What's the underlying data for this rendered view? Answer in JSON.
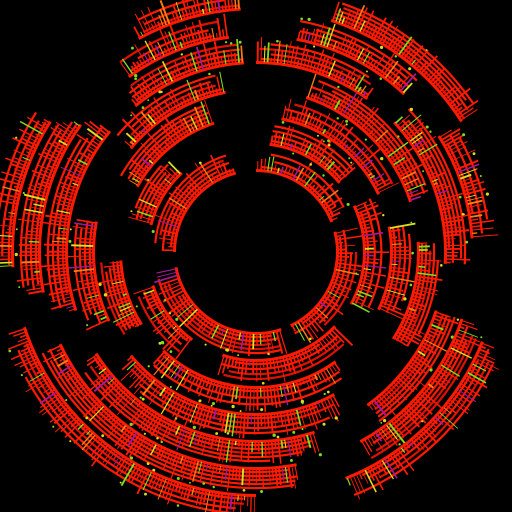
{
  "visual": {
    "type": "radial-segmented-ring-diagram",
    "background": "#000000",
    "palette": {
      "primary": "#ff1a00",
      "primary_dark": "#e01000",
      "accent_green": "#7fdc1f",
      "accent_yellow": "#d8e020",
      "accent_purple": "#a8189a",
      "accent_orange": "#ff7a10"
    },
    "text_labels": []
  },
  "rings": [
    {
      "name": "ring-1",
      "segments": [
        {
          "start": 0.0,
          "end": 0.19
        },
        {
          "start": 0.21,
          "end": 0.43
        },
        {
          "start": 0.45,
          "end": 0.72
        },
        {
          "start": 0.75,
          "end": 0.96
        }
      ]
    },
    {
      "name": "ring-2",
      "segments": [
        {
          "start": 0.02,
          "end": 0.14
        },
        {
          "start": 0.18,
          "end": 0.33
        },
        {
          "start": 0.37,
          "end": 0.55
        },
        {
          "start": 0.6,
          "end": 0.7
        },
        {
          "start": 0.79,
          "end": 0.88
        }
      ]
    },
    {
      "name": "ring-3",
      "segments": [
        {
          "start": 0.03,
          "end": 0.18
        },
        {
          "start": 0.22,
          "end": 0.32
        },
        {
          "start": 0.4,
          "end": 0.62
        },
        {
          "start": 0.66,
          "end": 0.74
        },
        {
          "start": 0.83,
          "end": 0.95
        }
      ]
    },
    {
      "name": "ring-4",
      "segments": [
        {
          "start": 0.05,
          "end": 0.2
        },
        {
          "start": 0.24,
          "end": 0.34
        },
        {
          "start": 0.42,
          "end": 0.64
        },
        {
          "start": 0.68,
          "end": 0.78
        },
        {
          "start": 0.86,
          "end": 0.97
        }
      ]
    },
    {
      "name": "ring-5",
      "segments": [
        {
          "start": 0.0,
          "end": 0.1
        },
        {
          "start": 0.13,
          "end": 0.26
        },
        {
          "start": 0.3,
          "end": 0.4
        },
        {
          "start": 0.45,
          "end": 0.66
        },
        {
          "start": 0.7,
          "end": 0.86
        },
        {
          "start": 0.89,
          "end": 0.99
        }
      ]
    },
    {
      "name": "ring-6",
      "segments": [
        {
          "start": 0.03,
          "end": 0.12
        },
        {
          "start": 0.16,
          "end": 0.24
        },
        {
          "start": 0.3,
          "end": 0.42
        },
        {
          "start": 0.47,
          "end": 0.68
        },
        {
          "start": 0.72,
          "end": 0.85
        },
        {
          "start": 0.9,
          "end": 0.98
        }
      ]
    },
    {
      "name": "ring-7",
      "segments": [
        {
          "start": 0.05,
          "end": 0.16
        },
        {
          "start": 0.31,
          "end": 0.44
        },
        {
          "start": 0.5,
          "end": 0.7
        },
        {
          "start": 0.74,
          "end": 0.84
        },
        {
          "start": 0.92,
          "end": 0.99
        }
      ]
    }
  ]
}
